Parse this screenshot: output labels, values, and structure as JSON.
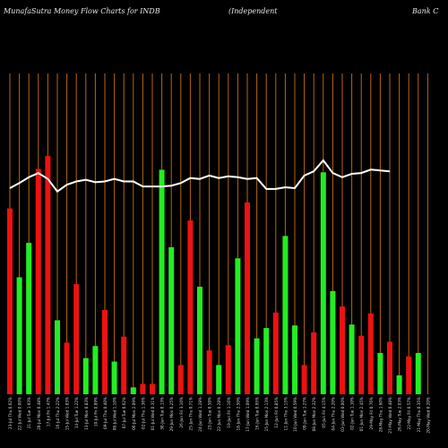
{
  "header": {
    "left_text": "MunafaSutra  Money Flow  Charts for INDB",
    "mid_text": "(Independent",
    "right_text": "Bank C"
  },
  "colors": {
    "background": "#000000",
    "grid": "#b8660b",
    "up": "#22ee22",
    "down": "#ee1111",
    "line": "#ffffff",
    "label": "#d8d8d8"
  },
  "chart_data": {
    "type": "bar",
    "title": "",
    "xlabel": "",
    "ylabel": "",
    "grid": true,
    "series_note": "",
    "categories": [
      "23-Jul Thu 0.62%",
      "22-Jul Wed 0.00%",
      "21-Jul Tue 1.93%",
      "20-Jul Mon 0.48%",
      "17-Jul Fri 1.47%",
      "16-Jul Thu 2.22%",
      "15-Jul Wed 1.83%",
      "14-Jul Tue 1.22%",
      "13-Jul Mon 0.83%",
      "10-Jul Fri 0.89%",
      "09-Jul Thu 0.40%",
      "08-Jul Wed 1.10%",
      "07-Jul Tue 0.62%",
      "06-Jul Mon 2.09%",
      "02-Jul Thu 1.36%",
      "01-Jul Wed 0.31%",
      "30-Jun Tue 0.13%",
      "29-Jun Mon 0.25%",
      "26-Jun Fri 3.10%",
      "25-Jun Thu 0.71%",
      "24-Jun Wed 1.28%",
      "23-Jun Tue 0.58%",
      "22-Jun Mon 0.28%",
      "19-Jun Fri 1.16%",
      "18-Jun Thu 2.50%",
      "17-Jun Wed 1.09%",
      "16-Jun Tue 0.95%",
      "15-Jun Mon 2.13%",
      "12-Jun Fri 0.85%",
      "11-Jun Thu 3.15%",
      "10-Jun Wed 0.59%",
      "09-Jun Tue 1.27%",
      "08-Jun Mon 2.32%",
      "05-Jun Fri 4.15%",
      "04-Jun Thu 2.20%",
      "03-Jun Wed 0.00%",
      "02-Jun Tue 1.10%",
      "01-Jun Mon 2.45%",
      "29-May Fri 0.76%",
      "28-May Thu 1.60%",
      "27-May Wed 0.48%",
      "26-May Tue 2.03%",
      "22-May Fri 0.57%",
      "21-May Thu 0.35%",
      "20-May Wed 0.20%"
    ],
    "label_display": [
      "23-Jul Thu 0.62%",
      "22-Jul Wed 0.00%",
      "21-Jul Tue 1.93%",
      "20-Jul Mon 0.48%",
      "17-Jul Fri 1.47%",
      "16-Jul Thu 2.22%",
      "15-Jul Wed 1.83%",
      "14-Jul Tue 1.22%",
      "13-Jul Mon 0.83%",
      "10-Jul Fri 0.89%",
      "09-Jul Thu 0.40%",
      "08-Jul Wed 1.10%",
      "07-Jul Tue 0.62%",
      "06-Jul Mon 2.09%",
      "02-Jul Thu 1.36%",
      "01-Jul Wed 0.31%",
      "30-Jun Tue 0.13%",
      "29-Jun Mon 0.25%",
      "26-Jun Fri 3.10%",
      "25-Jun Thu 0.71%",
      "24-Jun Wed 1.28%",
      "23-Jun Tue 0.58%",
      "22-Jun Mon 0.28%",
      "19-Jun Fri 1.16%",
      "18-Jun Thu 2.50%",
      "17-Jun Wed 1.09%",
      "16-Jun Tue 0.95%",
      "15-Jun Mon 2.13%",
      "12-Jun Fri 0.85%",
      "11-Jun Thu 3.15%",
      "10-Jun Wed 0.59%",
      "09-Jun Tue 1.27%",
      "08-Jun Mon 2.32%",
      "05-Jun Fri 4.15%",
      "04-Jun Thu 2.20%",
      "03-Jun Wed 0.00%",
      "02-Jun Tue 1.10%",
      "01-Jun Mon 2.45%",
      "29-May Fri 0.76%",
      "28-May Thu 1.60%",
      "27-May Wed 0.48%",
      "26-May Tue 2.03%",
      "22-May Fri 0.57%",
      "21-May Thu 0.35%",
      "20-May Wed 0.20%"
    ],
    "values": [
      216,
      136,
      176,
      262,
      277,
      86,
      60,
      128,
      42,
      56,
      98,
      38,
      67,
      8,
      12,
      12,
      261,
      171,
      34,
      202,
      125,
      51,
      34,
      57,
      158,
      223,
      65,
      77,
      95,
      184,
      80,
      34,
      72,
      258,
      120,
      102,
      81,
      68,
      94,
      48,
      61,
      22,
      44,
      48,
      0
    ],
    "directions": [
      "down",
      "up",
      "up",
      "down",
      "down",
      "up",
      "down",
      "down",
      "up",
      "up",
      "down",
      "up",
      "down",
      "up",
      "down",
      "down",
      "up",
      "up",
      "down",
      "down",
      "up",
      "down",
      "up",
      "down",
      "up",
      "down",
      "up",
      "up",
      "down",
      "up",
      "up",
      "down",
      "down",
      "up",
      "up",
      "down",
      "up",
      "down",
      "down",
      "up",
      "down",
      "up",
      "down",
      "up",
      "up"
    ],
    "line_values": [
      245,
      251,
      258,
      263,
      256,
      241,
      249,
      253,
      255,
      252,
      253,
      256,
      253,
      253,
      247,
      247,
      247,
      248,
      251,
      257,
      256,
      260,
      257,
      259,
      258,
      256,
      257,
      244,
      244,
      246,
      245,
      260,
      265,
      278,
      263,
      258,
      262,
      263,
      267,
      266,
      265,
      0,
      0,
      0,
      0
    ]
  }
}
